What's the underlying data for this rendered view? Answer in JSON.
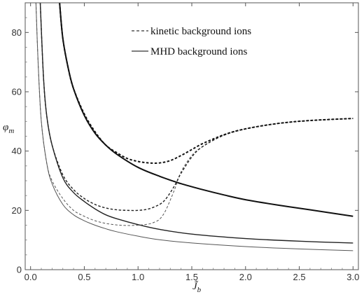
{
  "chart_data": {
    "type": "line",
    "xlabel": "J̃",
    "xlabel_sub": "b",
    "ylabel": "φ",
    "ylabel_sub": "m",
    "xlim": [
      -0.05,
      3.05
    ],
    "ylim": [
      0,
      90
    ],
    "xticks": [
      "0.0",
      "0.5",
      "1.0",
      "1.5",
      "2.0",
      "2.5",
      "3.0"
    ],
    "yticks": [
      "0",
      "20",
      "40",
      "60",
      "80"
    ],
    "legend_position": "top-center",
    "legend": [
      {
        "label": "kinetic background ions",
        "style": "dashed"
      },
      {
        "label": "MHD background ions",
        "style": "solid"
      }
    ],
    "series": [
      {
        "style": "solid",
        "weight": "thin",
        "x": [
          0.05,
          0.07,
          0.1,
          0.15,
          0.2,
          0.3,
          0.4,
          0.5,
          0.6,
          0.7,
          0.8,
          1.0,
          1.2,
          1.5,
          2.0,
          2.5,
          3.0
        ],
        "y": [
          90,
          70,
          50,
          36,
          29,
          22,
          18.5,
          16.5,
          15,
          13.8,
          12.8,
          11.3,
          10.1,
          9.0,
          7.8,
          7.0,
          6.4
        ]
      },
      {
        "style": "solid",
        "weight": "medium",
        "x": [
          0.09,
          0.12,
          0.15,
          0.2,
          0.3,
          0.4,
          0.5,
          0.6,
          0.7,
          0.8,
          1.0,
          1.2,
          1.5,
          2.0,
          2.5,
          3.0
        ],
        "y": [
          90,
          65,
          52,
          42,
          31,
          26,
          23,
          20.5,
          18.5,
          17.2,
          15.2,
          13.6,
          12.0,
          10.5,
          9.6,
          9.0
        ]
      },
      {
        "style": "solid",
        "weight": "thick",
        "x": [
          0.27,
          0.3,
          0.35,
          0.4,
          0.5,
          0.6,
          0.7,
          0.8,
          1.0,
          1.2,
          1.4,
          1.6,
          1.8,
          2.0,
          2.3,
          2.6,
          3.0
        ],
        "y": [
          90,
          78,
          68,
          61,
          52,
          46,
          42,
          39,
          34.5,
          31.5,
          29,
          27,
          25.2,
          23.6,
          21.8,
          20.2,
          18.0
        ]
      },
      {
        "style": "dashed",
        "weight": "thin",
        "x": [
          0.05,
          0.07,
          0.1,
          0.15,
          0.2,
          0.3,
          0.4,
          0.5,
          0.6,
          0.7,
          0.8,
          0.9,
          1.0,
          1.1,
          1.15,
          1.2,
          1.25,
          1.3,
          1.35,
          1.4,
          1.5,
          1.6,
          1.8,
          2.0,
          2.3,
          2.6,
          3.0
        ],
        "y": [
          90,
          70,
          50,
          36,
          30,
          24,
          20,
          18,
          16.5,
          15.6,
          15.1,
          14.9,
          15,
          15.4,
          16,
          17,
          19.5,
          23.5,
          28,
          33,
          38.5,
          41.5,
          45.3,
          47.5,
          49.3,
          50.3,
          51
        ]
      },
      {
        "style": "dashed",
        "weight": "medium",
        "x": [
          0.09,
          0.12,
          0.15,
          0.2,
          0.3,
          0.4,
          0.5,
          0.6,
          0.7,
          0.8,
          0.9,
          1.0,
          1.1,
          1.2,
          1.25,
          1.3,
          1.35,
          1.4,
          1.5,
          1.6,
          1.8,
          2.0,
          2.3,
          2.6,
          3.0
        ],
        "y": [
          90,
          65,
          52,
          42,
          32,
          27,
          24,
          22,
          20.8,
          20.2,
          20.0,
          20.0,
          20.5,
          22,
          23.5,
          26,
          29,
          32.5,
          38,
          41.5,
          45.5,
          47.5,
          49.3,
          50.3,
          51
        ]
      },
      {
        "style": "dashed",
        "weight": "thick",
        "x": [
          0.27,
          0.3,
          0.35,
          0.4,
          0.5,
          0.6,
          0.7,
          0.8,
          0.9,
          1.0,
          1.1,
          1.2,
          1.3,
          1.4,
          1.5,
          1.6,
          1.8,
          2.0,
          2.3,
          2.6,
          3.0
        ],
        "y": [
          90,
          78,
          68,
          61,
          52.5,
          46.5,
          42,
          39.5,
          37.5,
          36.5,
          36,
          36,
          36.8,
          38.5,
          40.5,
          42.5,
          45.5,
          47.5,
          49.3,
          50.3,
          51
        ]
      }
    ]
  }
}
